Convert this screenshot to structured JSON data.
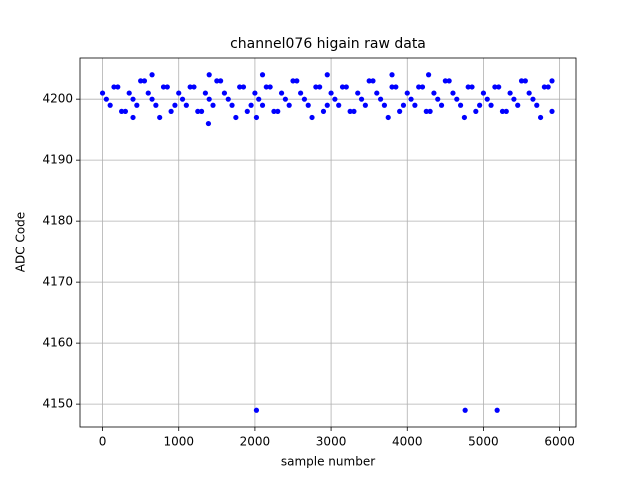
{
  "chart_data": {
    "type": "scatter",
    "title": "channel076 higain raw data",
    "xlabel": "sample number",
    "ylabel": "ADC Code",
    "series": [
      {
        "color": "#0000ff",
        "x": [
          0,
          100,
          200,
          300,
          400,
          500,
          600,
          700,
          800,
          900,
          1000,
          1100,
          1200,
          1300,
          1400,
          1500,
          1600,
          1700,
          1800,
          1900,
          2000,
          2100,
          2200,
          2300,
          2400,
          2500,
          2600,
          2700,
          2800,
          2900,
          3000,
          3100,
          3200,
          3300,
          3400,
          3500,
          3600,
          3700,
          3800,
          3900,
          4000,
          4100,
          4200,
          4300,
          4400,
          4500,
          4600,
          4700,
          4800,
          4900,
          5000,
          5100,
          5200,
          5300,
          5400,
          5500,
          5600,
          5700,
          5800,
          5900,
          50,
          150,
          250,
          350,
          450,
          550,
          650,
          750,
          850,
          950,
          1050,
          1150,
          1250,
          1350,
          1450,
          1550,
          1650,
          1750,
          1850,
          1950,
          2050,
          2150,
          2250,
          2350,
          2450,
          2550,
          2650,
          2750,
          2850,
          2950,
          3050,
          3150,
          3250,
          3350,
          3450,
          3550,
          3650,
          3750,
          3850,
          3950,
          4050,
          4150,
          4250,
          4350,
          4450,
          4550,
          4650,
          4750,
          4850,
          4950,
          5050,
          5150,
          5250,
          5350,
          5450,
          5550,
          5650,
          5750,
          5850,
          1390,
          650,
          1400,
          2020,
          4760,
          5180,
          2100,
          2950,
          3800,
          4280,
          5900,
          400,
          2020
        ],
        "y": [
          4201,
          4199,
          4202,
          4198,
          4200,
          4203,
          4201,
          4199,
          4202,
          4198,
          4201,
          4199,
          4202,
          4198,
          4200,
          4203,
          4201,
          4199,
          4202,
          4198,
          4201,
          4199,
          4202,
          4198,
          4200,
          4203,
          4201,
          4199,
          4202,
          4198,
          4201,
          4199,
          4202,
          4198,
          4200,
          4203,
          4201,
          4199,
          4202,
          4198,
          4201,
          4199,
          4202,
          4198,
          4200,
          4203,
          4201,
          4199,
          4202,
          4198,
          4201,
          4199,
          4202,
          4198,
          4200,
          4203,
          4201,
          4199,
          4202,
          4198,
          4200,
          4202,
          4198,
          4201,
          4199,
          4203,
          4200,
          4197,
          4202,
          4199,
          4200,
          4202,
          4198,
          4201,
          4199,
          4203,
          4200,
          4197,
          4202,
          4199,
          4200,
          4202,
          4198,
          4201,
          4199,
          4203,
          4200,
          4197,
          4202,
          4199,
          4200,
          4202,
          4198,
          4201,
          4199,
          4203,
          4200,
          4197,
          4202,
          4199,
          4200,
          4202,
          4198,
          4201,
          4199,
          4203,
          4200,
          4197,
          4202,
          4199,
          4200,
          4202,
          4198,
          4201,
          4199,
          4203,
          4200,
          4197,
          4202,
          4196,
          4204,
          4204,
          4149,
          4149,
          4149,
          4204,
          4204,
          4204,
          4204,
          4203,
          4197,
          4197
        ]
      }
    ],
    "xlim": [
      -296,
      6215
    ],
    "ylim": [
      4146.25,
      4206.75
    ],
    "xticks": [
      0,
      1000,
      2000,
      3000,
      4000,
      5000,
      6000
    ],
    "yticks": [
      4150,
      4160,
      4170,
      4180,
      4190,
      4200
    ],
    "grid": true
  }
}
